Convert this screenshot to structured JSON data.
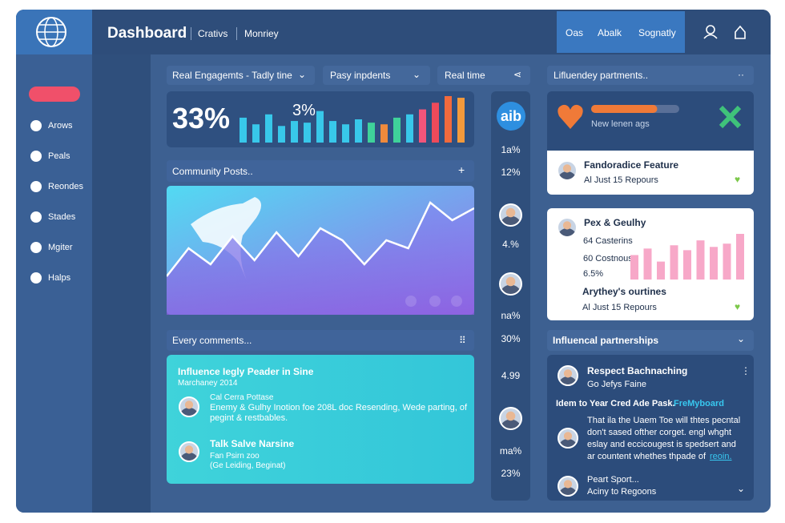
{
  "header": {
    "title": "Dashboard",
    "tabs": [
      "Crativs",
      "Monriey"
    ],
    "buttons": [
      "Oas",
      "Abalk",
      "Sognatly"
    ]
  },
  "sidebar": {
    "items": [
      "Arows",
      "Peals",
      "Reondes",
      "Stades",
      "Mgiter",
      "Halps"
    ]
  },
  "engagement": {
    "filters": [
      "Real Engagemts - Tadly tine",
      "Pasy inpdents",
      "Real time"
    ],
    "big_value": "33%",
    "small_value": "3%",
    "bar_values": [
      30,
      22,
      34,
      20,
      26,
      24,
      38,
      26,
      22,
      28,
      24,
      22,
      30,
      34,
      40,
      48,
      56,
      54
    ],
    "bar_colors": [
      "#38c8ea",
      "#38c8ea",
      "#38c8ea",
      "#38c8ea",
      "#38c8ea",
      "#38c8ea",
      "#38c8ea",
      "#38c8ea",
      "#38c8ea",
      "#38c8ea",
      "#3fd29a",
      "#f08a3c",
      "#3fd29a",
      "#38c8ea",
      "#f2557a",
      "#ef4a5a",
      "#f26a3c",
      "#f39a3c"
    ]
  },
  "community": {
    "title": "Community Posts..",
    "area_values": [
      48,
      83,
      63,
      98,
      68,
      103,
      73,
      108,
      93,
      63,
      93,
      83,
      140,
      118,
      133
    ]
  },
  "side_stats": {
    "logo": "aib",
    "values": [
      "1a%",
      "12%",
      "4.%",
      "na%",
      "30%",
      "4.99",
      "ma%",
      "23%"
    ]
  },
  "comments": {
    "title": "Every comments...",
    "heading": "Influence Iegly Peader in Sine",
    "date": "Marchaney 2014",
    "items": [
      {
        "name": "Cal Cerra Pottase",
        "line1": "Enemy & Gulhy Inotion foe 208L doc Resending, Wede parting, of",
        "line2": "pegint & restbables."
      },
      {
        "name": "Talk Salve Narsine",
        "line1": "Fan Psirn zoo",
        "line2": "(Ge Leiding, Beginat)"
      }
    ]
  },
  "partners": {
    "title": "Lifluendey partments..",
    "progress_value": 75,
    "progress_label": "New lenen ags",
    "feature": {
      "title": "Fandoradice Feature",
      "sub": "Al Just 15 Repours"
    },
    "chart_card": {
      "title": "Pex & Geulhy",
      "lines": [
        "64 Casterins",
        "60 Costnous",
        "6.5%"
      ],
      "bars": [
        30,
        38,
        22,
        42,
        36,
        48,
        40,
        44,
        56
      ],
      "title2": "Arythey's ourtines",
      "sub2": "Al Just 15 Repours"
    }
  },
  "influencer": {
    "title": "Influencal partnerships",
    "name": "Respect Bachnaching",
    "sub": "Go Jefys Faine",
    "headline": "Idem to Year Cred Ade Pask.",
    "link": "FreMyboard",
    "lines": [
      "That ila the Uaem Toe will thtes pecntal",
      "don't sased ofther corget. engl whght",
      "eslay and eccicougest is spedsert and",
      "ar countent whethes thpade of"
    ],
    "link2": "reoin.",
    "bottom_name": "Peart Sport...",
    "bottom_sub": "Aciny to Regoons"
  }
}
